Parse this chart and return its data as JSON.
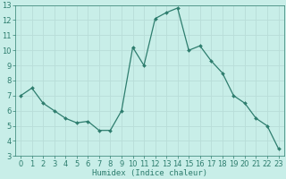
{
  "x": [
    0,
    1,
    2,
    3,
    4,
    5,
    6,
    7,
    8,
    9,
    10,
    11,
    12,
    13,
    14,
    15,
    16,
    17,
    18,
    19,
    20,
    21,
    22,
    23
  ],
  "y": [
    7.0,
    7.5,
    6.5,
    6.0,
    5.5,
    5.2,
    5.3,
    4.7,
    4.7,
    6.0,
    10.2,
    9.0,
    12.1,
    12.5,
    12.8,
    10.0,
    10.3,
    9.3,
    8.5,
    7.0,
    6.5,
    5.5,
    5.0,
    3.5
  ],
  "line_color": "#2e7d6e",
  "marker": "D",
  "marker_size": 2.0,
  "bg_color": "#c8eee8",
  "grid_color": "#b8ddd8",
  "xlabel": "Humidex (Indice chaleur)",
  "ylabel": "",
  "xlim": [
    -0.5,
    23.5
  ],
  "ylim": [
    3,
    13
  ],
  "yticks": [
    3,
    4,
    5,
    6,
    7,
    8,
    9,
    10,
    11,
    12,
    13
  ],
  "xticks": [
    0,
    1,
    2,
    3,
    4,
    5,
    6,
    7,
    8,
    9,
    10,
    11,
    12,
    13,
    14,
    15,
    16,
    17,
    18,
    19,
    20,
    21,
    22,
    23
  ],
  "tick_color": "#2e7d6e",
  "xlabel_fontsize": 6.5,
  "tick_fontsize": 6.0,
  "linewidth": 0.9
}
